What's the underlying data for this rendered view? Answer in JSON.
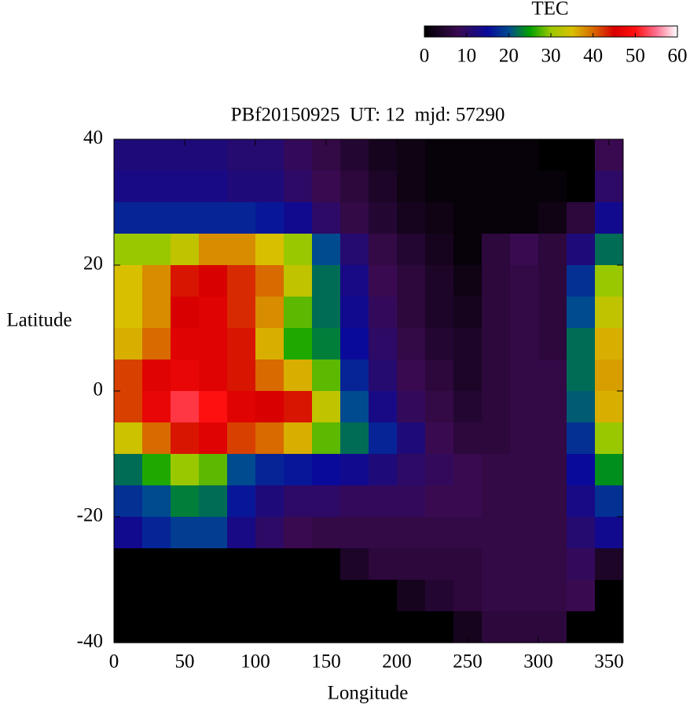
{
  "chart_data": {
    "type": "heatmap",
    "title": "PBf20150925  UT: 12  mjd: 57290",
    "xlabel": "Longitude",
    "ylabel": "Latitude",
    "x": [
      10,
      30,
      50,
      70,
      90,
      110,
      130,
      150,
      170,
      190,
      210,
      230,
      250,
      270,
      290,
      310,
      330,
      350
    ],
    "y": [
      37.5,
      32.5,
      27.5,
      22.5,
      17.5,
      12.5,
      7.5,
      2.5,
      -2.5,
      -7.5,
      -12.5,
      -17.5,
      -22.5,
      -27.5,
      -32.5,
      -37.5
    ],
    "z": [
      [
        12,
        12,
        12,
        12,
        11,
        11,
        9,
        7,
        5,
        3,
        2,
        1,
        1,
        1,
        1,
        0,
        0,
        8
      ],
      [
        13,
        13,
        13,
        13,
        12,
        12,
        10,
        8,
        6,
        4,
        2,
        1,
        1,
        1,
        1,
        1,
        0,
        10
      ],
      [
        17,
        17,
        17,
        17,
        17,
        16,
        14,
        10,
        7,
        5,
        3,
        2,
        1,
        1,
        1,
        2,
        6,
        14
      ],
      [
        30,
        30,
        33,
        38,
        38,
        35,
        30,
        20,
        11,
        7,
        5,
        3,
        1,
        6,
        8,
        6,
        12,
        22
      ],
      [
        35,
        38,
        44,
        45,
        43,
        40,
        33,
        22,
        13,
        8,
        6,
        4,
        2,
        6,
        7,
        6,
        18,
        30
      ],
      [
        35,
        38,
        45,
        46,
        43,
        38,
        28,
        22,
        14,
        9,
        6,
        4,
        3,
        6,
        7,
        6,
        20,
        33
      ],
      [
        36,
        40,
        46,
        46,
        44,
        36,
        26,
        23,
        15,
        10,
        7,
        5,
        4,
        6,
        7,
        6,
        22,
        36
      ],
      [
        42,
        46,
        47,
        46,
        44,
        40,
        36,
        28,
        17,
        11,
        8,
        6,
        4,
        6,
        7,
        7,
        22,
        37
      ],
      [
        42,
        47,
        52,
        50,
        46,
        45,
        44,
        33,
        20,
        13,
        9,
        7,
        5,
        6,
        7,
        7,
        21,
        36
      ],
      [
        34,
        40,
        44,
        46,
        42,
        40,
        36,
        28,
        22,
        17,
        12,
        8,
        6,
        6,
        7,
        7,
        18,
        30
      ],
      [
        22,
        26,
        30,
        28,
        20,
        17,
        16,
        15,
        14,
        12,
        10,
        9,
        8,
        7,
        7,
        7,
        15,
        24
      ],
      [
        18,
        20,
        23,
        22,
        16,
        12,
        10,
        10,
        9,
        9,
        9,
        8,
        8,
        7,
        7,
        7,
        13,
        18
      ],
      [
        14,
        17,
        19,
        19,
        13,
        10,
        8,
        7,
        7,
        7,
        7,
        7,
        7,
        7,
        7,
        7,
        11,
        14
      ],
      [
        0,
        0,
        0,
        0,
        0,
        0,
        0,
        0,
        4,
        6,
        6,
        6,
        6,
        7,
        7,
        7,
        9,
        4
      ],
      [
        0,
        0,
        0,
        0,
        0,
        0,
        0,
        0,
        0,
        0,
        3,
        5,
        6,
        7,
        7,
        7,
        8,
        0
      ],
      [
        0,
        0,
        0,
        0,
        0,
        0,
        0,
        0,
        0,
        0,
        0,
        0,
        3,
        6,
        6,
        6,
        0,
        0
      ]
    ],
    "xlim": [
      0,
      360
    ],
    "ylim": [
      -40,
      40
    ],
    "xticks": [
      0,
      50,
      100,
      150,
      200,
      250,
      300,
      350
    ],
    "yticks": [
      -40,
      -20,
      0,
      20,
      40
    ],
    "colorbar": {
      "title": "TEC",
      "lim": [
        0,
        60
      ],
      "ticks": [
        0,
        10,
        20,
        30,
        40,
        50,
        60
      ],
      "colormap": [
        {
          "value": 0,
          "color": "#000000"
        },
        {
          "value": 8,
          "color": "#3a0a50"
        },
        {
          "value": 15,
          "color": "#0a0a9a"
        },
        {
          "value": 20,
          "color": "#004a90"
        },
        {
          "value": 25,
          "color": "#00a000"
        },
        {
          "value": 30,
          "color": "#9ac800"
        },
        {
          "value": 35,
          "color": "#d8c000"
        },
        {
          "value": 40,
          "color": "#d86a00"
        },
        {
          "value": 45,
          "color": "#d80000"
        },
        {
          "value": 50,
          "color": "#ff1010"
        },
        {
          "value": 55,
          "color": "#ff7090"
        },
        {
          "value": 60,
          "color": "#ffffff"
        }
      ]
    }
  }
}
